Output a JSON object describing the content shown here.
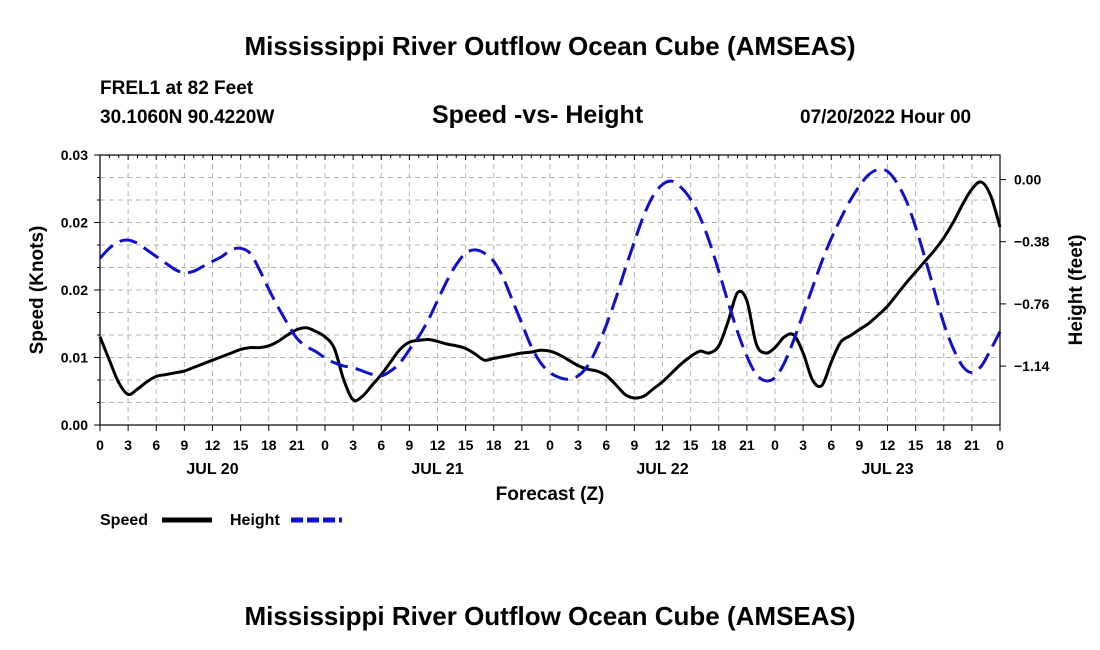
{
  "page": {
    "title_top": "Mississippi River Outflow Ocean Cube (AMSEAS)",
    "title_bottom": "Mississippi River Outflow Ocean Cube (AMSEAS)",
    "station": "FREL1 at 82 Feet",
    "coords": "30.1060N  90.4220W",
    "chart_title": "Speed -vs- Height",
    "date": "07/20/2022 Hour 00"
  },
  "colors": {
    "speed": "#000000",
    "height": "#1010c8",
    "grid": "#b4b4b4"
  },
  "chart_data": {
    "type": "line",
    "title": "Speed -vs- Height",
    "xlabel": "Forecast (Z)",
    "ylabel": "Speed (Knots)",
    "y2label": "Height (feet)",
    "x_range": [
      0,
      96
    ],
    "ylim": [
      0,
      0.03
    ],
    "y2lim": [
      -1.5,
      0.15
    ],
    "grid": true,
    "x_tick_values": [
      0,
      3,
      6,
      9,
      12,
      15,
      18,
      21,
      24,
      27,
      30,
      33,
      36,
      39,
      42,
      45,
      48,
      51,
      54,
      57,
      60,
      63,
      66,
      69,
      72,
      75,
      78,
      81,
      84,
      87,
      90,
      93,
      96
    ],
    "x_tick_labels": [
      "0",
      "3",
      "6",
      "9",
      "12",
      "15",
      "18",
      "21",
      "0",
      "3",
      "6",
      "9",
      "12",
      "15",
      "18",
      "21",
      "0",
      "3",
      "6",
      "9",
      "12",
      "15",
      "18",
      "21",
      "0",
      "3",
      "6",
      "9",
      "12",
      "15",
      "18",
      "21",
      "0"
    ],
    "day_labels": [
      {
        "label": "JUL 20",
        "at": 12
      },
      {
        "label": "JUL 21",
        "at": 36
      },
      {
        "label": "JUL 22",
        "at": 60
      },
      {
        "label": "JUL 23",
        "at": 84
      }
    ],
    "y_ticks": [
      {
        "value": 0.0,
        "label": "0.00"
      },
      {
        "value": 0.0075,
        "label": "0.01"
      },
      {
        "value": 0.015,
        "label": "0.02"
      },
      {
        "value": 0.0225,
        "label": "0.02"
      },
      {
        "value": 0.03,
        "label": "0.03"
      }
    ],
    "y2_ticks": [
      {
        "value": 0.0,
        "label": "0.00"
      },
      {
        "value": -0.38,
        "label": "-0.38"
      },
      {
        "value": -0.76,
        "label": "-0.76"
      },
      {
        "value": -1.14,
        "label": "-1.14"
      }
    ],
    "series": [
      {
        "name": "Speed",
        "axis": "left",
        "x": [
          0,
          1,
          2,
          3,
          4,
          5,
          6,
          7,
          8,
          9,
          10,
          11,
          12,
          13,
          14,
          15,
          16,
          17,
          18,
          19,
          20,
          21,
          22,
          23,
          24,
          25,
          26,
          27,
          28,
          29,
          30,
          31,
          32,
          33,
          34,
          35,
          36,
          37,
          38,
          39,
          40,
          41,
          42,
          43,
          44,
          45,
          46,
          47,
          48,
          49,
          50,
          51,
          52,
          53,
          54,
          55,
          56,
          57,
          58,
          59,
          60,
          61,
          62,
          63,
          64,
          65,
          66,
          67,
          68,
          69,
          70,
          71,
          72,
          73,
          74,
          75,
          76,
          77,
          78,
          79,
          80,
          81,
          82,
          83,
          84,
          85,
          86,
          87,
          88,
          89,
          90,
          91,
          92,
          93,
          94,
          95,
          96
        ],
        "values": [
          0.0098,
          0.0072,
          0.0047,
          0.0034,
          0.004,
          0.0048,
          0.0054,
          0.0056,
          0.0058,
          0.006,
          0.0064,
          0.0068,
          0.0072,
          0.0076,
          0.008,
          0.0084,
          0.0086,
          0.0086,
          0.0088,
          0.0093,
          0.01,
          0.0106,
          0.0108,
          0.0104,
          0.0098,
          0.0085,
          0.005,
          0.0028,
          0.0032,
          0.0044,
          0.0056,
          0.007,
          0.0084,
          0.0092,
          0.0094,
          0.0095,
          0.0093,
          0.009,
          0.0088,
          0.0085,
          0.0079,
          0.0072,
          0.0074,
          0.0076,
          0.0078,
          0.008,
          0.0081,
          0.0083,
          0.0082,
          0.0078,
          0.0072,
          0.0066,
          0.0062,
          0.006,
          0.0055,
          0.0045,
          0.0034,
          0.003,
          0.0032,
          0.004,
          0.0048,
          0.0058,
          0.0068,
          0.0076,
          0.0082,
          0.008,
          0.0088,
          0.0115,
          0.0147,
          0.0138,
          0.009,
          0.008,
          0.0086,
          0.0098,
          0.01,
          0.008,
          0.005,
          0.0044,
          0.007,
          0.0092,
          0.0099,
          0.0106,
          0.0113,
          0.0122,
          0.0132,
          0.0145,
          0.0158,
          0.017,
          0.0182,
          0.0194,
          0.0208,
          0.0225,
          0.0245,
          0.0262,
          0.027,
          0.0255,
          0.022
        ]
      },
      {
        "name": "Height",
        "axis": "right",
        "x": [
          0,
          1,
          2,
          3,
          4,
          5,
          6,
          7,
          8,
          9,
          10,
          11,
          12,
          13,
          14,
          15,
          16,
          17,
          18,
          19,
          20,
          21,
          22,
          23,
          24,
          25,
          26,
          27,
          28,
          29,
          30,
          31,
          32,
          33,
          34,
          35,
          36,
          37,
          38,
          39,
          40,
          41,
          42,
          43,
          44,
          45,
          46,
          47,
          48,
          49,
          50,
          51,
          52,
          53,
          54,
          55,
          56,
          57,
          58,
          59,
          60,
          61,
          62,
          63,
          64,
          65,
          66,
          67,
          68,
          69,
          70,
          71,
          72,
          73,
          74,
          75,
          76,
          77,
          78,
          79,
          80,
          81,
          82,
          83,
          84,
          85,
          86,
          87,
          88,
          89,
          90,
          91,
          92,
          93,
          94,
          95,
          96
        ],
        "values": [
          -0.48,
          -0.42,
          -0.38,
          -0.37,
          -0.39,
          -0.43,
          -0.47,
          -0.51,
          -0.55,
          -0.57,
          -0.56,
          -0.53,
          -0.5,
          -0.47,
          -0.43,
          -0.42,
          -0.45,
          -0.55,
          -0.67,
          -0.78,
          -0.88,
          -0.97,
          -1.02,
          -1.05,
          -1.09,
          -1.12,
          -1.14,
          -1.15,
          -1.17,
          -1.19,
          -1.2,
          -1.17,
          -1.12,
          -1.04,
          -0.96,
          -0.86,
          -0.74,
          -0.62,
          -0.52,
          -0.45,
          -0.43,
          -0.45,
          -0.5,
          -0.6,
          -0.74,
          -0.88,
          -1.02,
          -1.12,
          -1.18,
          -1.21,
          -1.22,
          -1.2,
          -1.14,
          -1.03,
          -0.89,
          -0.73,
          -0.55,
          -0.38,
          -0.22,
          -0.1,
          -0.03,
          -0.01,
          -0.05,
          -0.12,
          -0.23,
          -0.38,
          -0.56,
          -0.75,
          -0.93,
          -1.08,
          -1.19,
          -1.23,
          -1.21,
          -1.12,
          -0.98,
          -0.82,
          -0.66,
          -0.5,
          -0.36,
          -0.24,
          -0.13,
          -0.04,
          0.03,
          0.06,
          0.05,
          -0.02,
          -0.13,
          -0.29,
          -0.48,
          -0.68,
          -0.88,
          -1.03,
          -1.14,
          -1.18,
          -1.14,
          -1.04,
          -0.93
        ]
      }
    ],
    "legend": [
      {
        "label": "Speed",
        "color": "#000000",
        "dash": "solid"
      },
      {
        "label": "Height",
        "color": "#1010c8",
        "dash": "dashed"
      }
    ],
    "legend_position": "bottom-left"
  }
}
